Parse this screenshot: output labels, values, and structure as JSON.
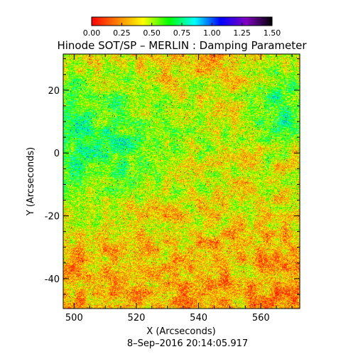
{
  "chart_data": {
    "type": "heatmap",
    "title": "Hinode SOT/SP – MERLIN : Damping Parameter",
    "xlabel": "X (Arcseconds)",
    "ylabel": "Y (Arcseconds)",
    "footer": "8–Sep–2016 20:14:05.917",
    "xlim": [
      496.5,
      572.5
    ],
    "ylim": [
      -49.5,
      31.5
    ],
    "xticks": [
      500,
      520,
      540,
      560
    ],
    "yticks": [
      -40,
      -20,
      0,
      20
    ],
    "colorbar": {
      "range": [
        0,
        1.5
      ],
      "ticks": [
        "0.00",
        "0.25",
        "0.50",
        "0.75",
        "1.00",
        "1.25",
        "1.50"
      ],
      "colormap": [
        "#ff0000",
        "#ff8000",
        "#ffff00",
        "#00ff00",
        "#00ffff",
        "#0000ff",
        "#8000c0",
        "#000000"
      ]
    },
    "field": {
      "description_of_values": "noisy damping-parameter map; mostly 0.1–0.6, higher (green/cyan/blue) in upper-left region and right-edge sunspot around x≈562, y≈15"
    }
  }
}
